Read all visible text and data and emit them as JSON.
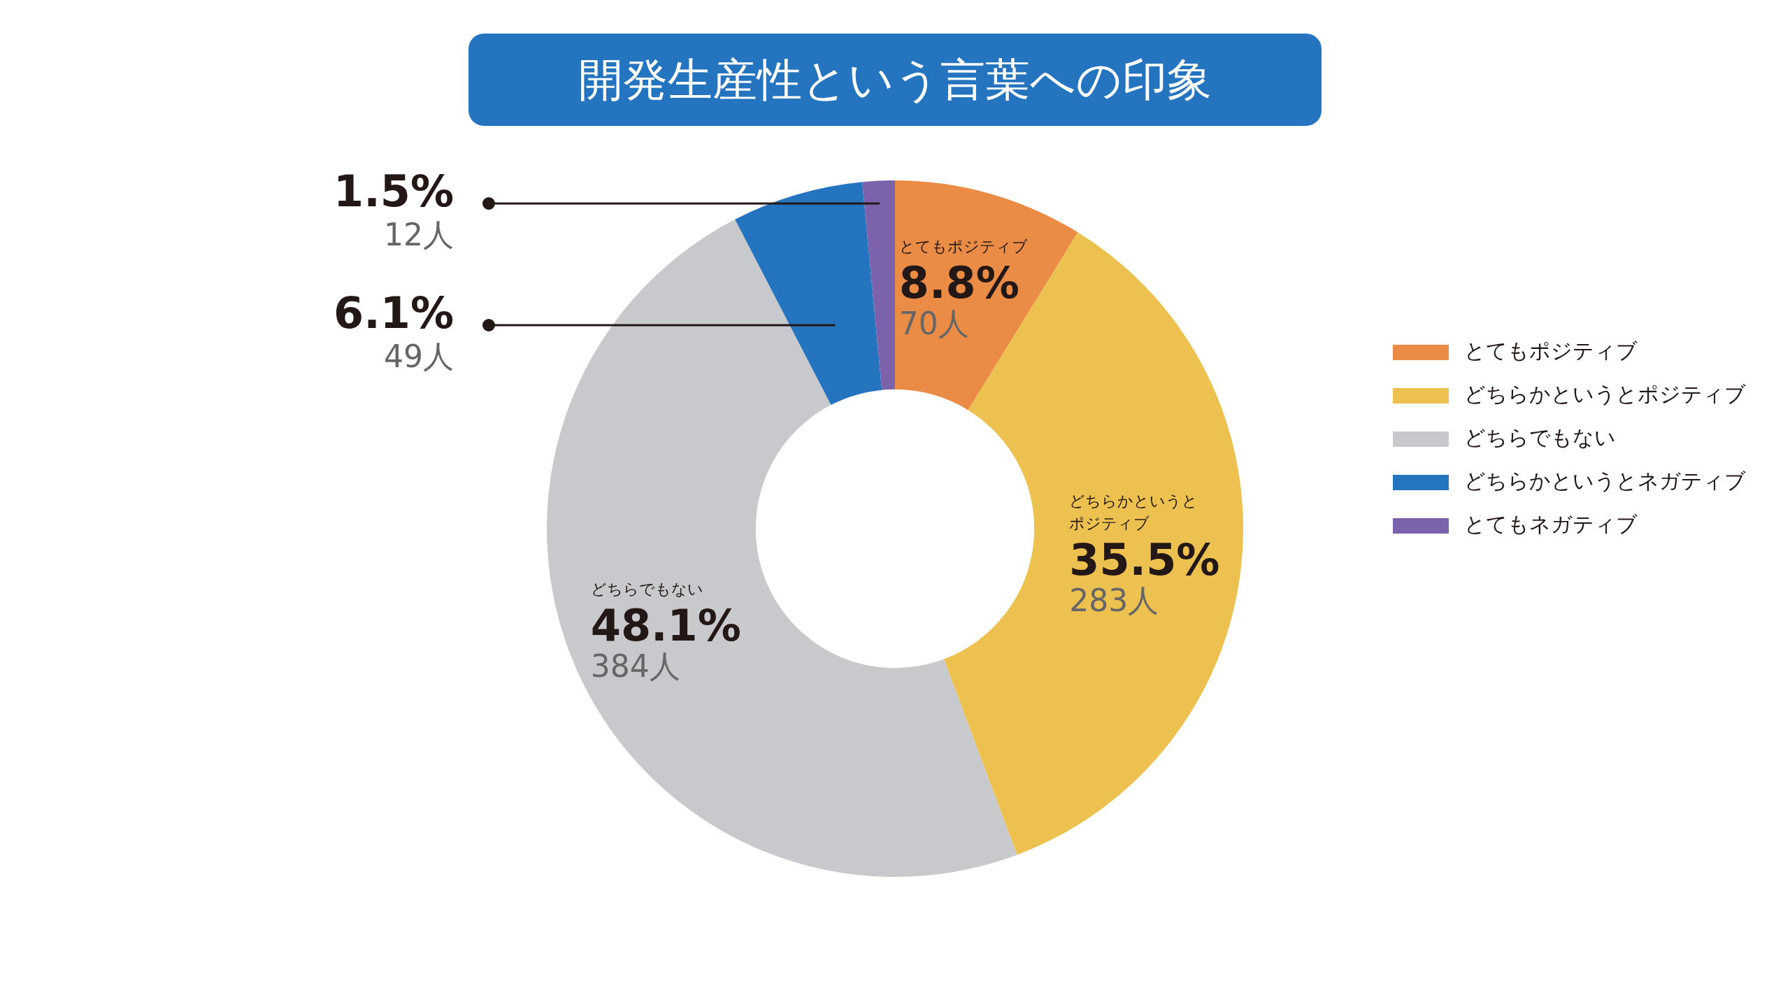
{
  "chart_data": {
    "type": "donut",
    "title": "開発生産性という言葉への印象",
    "categories": [
      "とてもポジティブ",
      "どちらかというとポジティブ",
      "どちらでもない",
      "どちらかというとネガティブ",
      "とてもネガティブ"
    ],
    "values": [
      8.8,
      35.5,
      48.1,
      6.1,
      1.5
    ],
    "colors": [
      "#ea8c45",
      "#ecc14f",
      "#c8c9cc",
      "#2474bf",
      "#7b62ab"
    ],
    "value_labels": [
      "8.8%\n70人",
      "35.5%\n283人",
      "48.1%\n384人",
      "6.1%\n49人",
      "1.5%\n12人"
    ],
    "legend": "right"
  }
}
